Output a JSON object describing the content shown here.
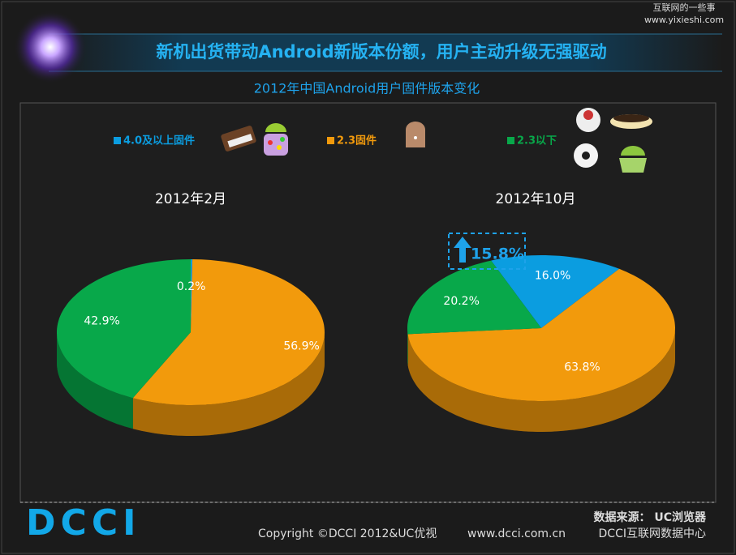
{
  "watermark": {
    "line1": "互联网的一些事",
    "line2": "www.yixieshi.com"
  },
  "header": {
    "title": "新机出货带动Android新版本份额，用户主动升级无强驱动",
    "subtitle": "2012年中国Android用户固件版本变化"
  },
  "chart_data": [
    {
      "type": "pie",
      "title": "2012年2月",
      "categories": [
        "4.0及以上固件",
        "2.3固件",
        "2.3以下"
      ],
      "values": [
        0.2,
        56.9,
        42.9
      ],
      "value_labels": [
        "0.2%",
        "56.9%",
        "42.9%"
      ],
      "colors": [
        "#0b9de0",
        "#f29a0c",
        "#08a84a"
      ]
    },
    {
      "type": "pie",
      "title": "2012年10月",
      "categories": [
        "4.0及以上固件",
        "2.3固件",
        "2.3以下"
      ],
      "values": [
        16.0,
        63.8,
        20.2
      ],
      "value_labels": [
        "16.0%",
        "63.8%",
        "20.2%"
      ],
      "colors": [
        "#0b9de0",
        "#f29a0c",
        "#08a84a"
      ],
      "annotation": {
        "value": 15.8,
        "label": "15.8%"
      }
    }
  ],
  "footer": {
    "logo": "DCCI",
    "copyright": "Copyright ©DCCI 2012&UC优视",
    "url": "www.dcci.com.cn",
    "source": "数据来源： UC浏览器",
    "org": "DCCI互联网数据中心"
  }
}
